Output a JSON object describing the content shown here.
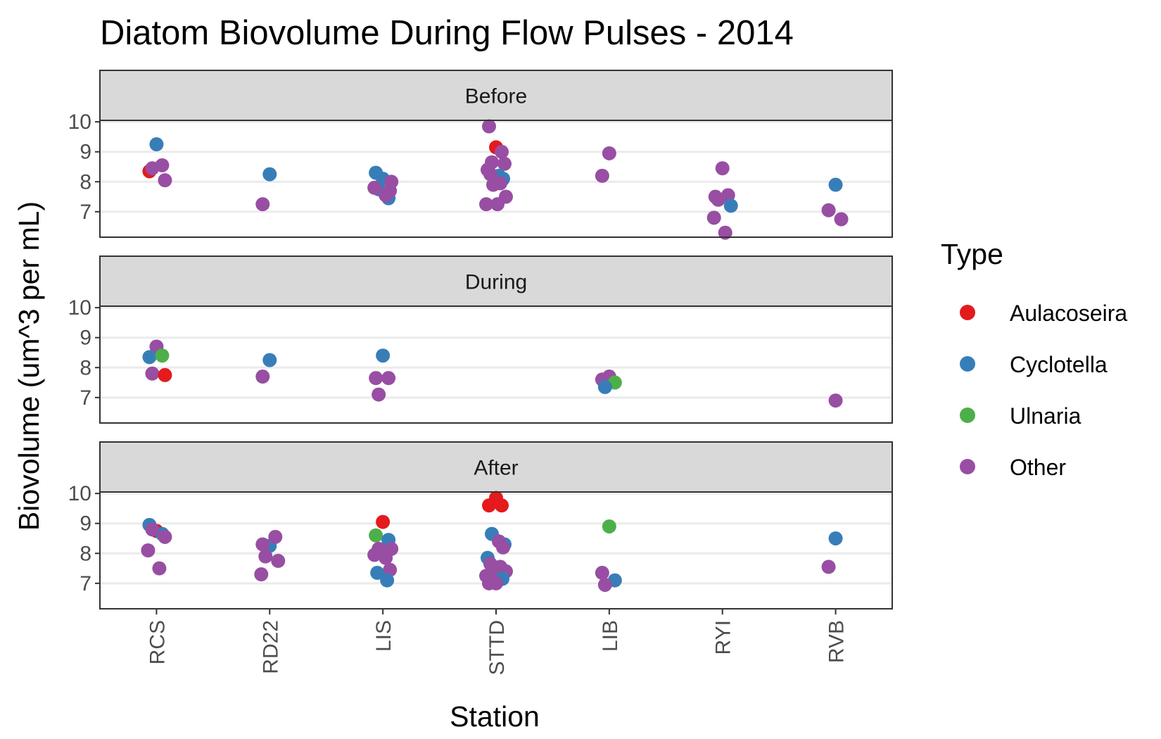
{
  "chart_data": {
    "type": "scatter",
    "title": "Diatom Biovolume During Flow Pulses - 2014",
    "xlabel": "Station",
    "ylabel": "Biovolume (um^3 per mL)",
    "categories": [
      "RCS",
      "RD22",
      "LIS",
      "STTD",
      "LIB",
      "RYI",
      "RVB"
    ],
    "ylim": [
      6.15,
      10.05
    ],
    "yticks": [
      7,
      8,
      9,
      10
    ],
    "grid": true,
    "legend_position": "right",
    "legend": {
      "title": "Type",
      "entries": [
        {
          "name": "Aulacoseira",
          "color": "#e41a1c"
        },
        {
          "name": "Cyclotella",
          "color": "#377eb8"
        },
        {
          "name": "Ulnaria",
          "color": "#4daf4a"
        },
        {
          "name": "Other",
          "color": "#984ea3"
        }
      ]
    },
    "panels": [
      {
        "label": "Before",
        "points": [
          {
            "station": "RCS",
            "type": "Cyclotella",
            "y": 9.25
          },
          {
            "station": "RCS",
            "type": "Aulacoseira",
            "y": 8.35
          },
          {
            "station": "RCS",
            "type": "Other",
            "y": 8.55
          },
          {
            "station": "RCS",
            "type": "Other",
            "y": 8.45
          },
          {
            "station": "RCS",
            "type": "Other",
            "y": 8.05
          },
          {
            "station": "RD22",
            "type": "Cyclotella",
            "y": 8.25
          },
          {
            "station": "RD22",
            "type": "Other",
            "y": 7.25
          },
          {
            "station": "LIS",
            "type": "Cyclotella",
            "y": 8.1
          },
          {
            "station": "LIS",
            "type": "Cyclotella",
            "y": 8.3
          },
          {
            "station": "LIS",
            "type": "Cyclotella",
            "y": 7.45
          },
          {
            "station": "LIS",
            "type": "Cyclotella",
            "y": 7.75
          },
          {
            "station": "LIS",
            "type": "Other",
            "y": 8.0
          },
          {
            "station": "LIS",
            "type": "Other",
            "y": 7.8
          },
          {
            "station": "LIS",
            "type": "Other",
            "y": 7.55
          },
          {
            "station": "LIS",
            "type": "Other",
            "y": 7.7
          },
          {
            "station": "STTD",
            "type": "Aulacoseira",
            "y": 9.15
          },
          {
            "station": "STTD",
            "type": "Other",
            "y": 9.85
          },
          {
            "station": "STTD",
            "type": "Other",
            "y": 9.0
          },
          {
            "station": "STTD",
            "type": "Other",
            "y": 8.65
          },
          {
            "station": "STTD",
            "type": "Other",
            "y": 8.6
          },
          {
            "station": "STTD",
            "type": "Other",
            "y": 8.4
          },
          {
            "station": "STTD",
            "type": "Cyclotella",
            "y": 8.2
          },
          {
            "station": "STTD",
            "type": "Cyclotella",
            "y": 8.1
          },
          {
            "station": "STTD",
            "type": "Other",
            "y": 8.25
          },
          {
            "station": "STTD",
            "type": "Other",
            "y": 7.95
          },
          {
            "station": "STTD",
            "type": "Other",
            "y": 7.9
          },
          {
            "station": "STTD",
            "type": "Other",
            "y": 7.5
          },
          {
            "station": "STTD",
            "type": "Other",
            "y": 7.25
          },
          {
            "station": "STTD",
            "type": "Other",
            "y": 7.25
          },
          {
            "station": "LIB",
            "type": "Other",
            "y": 8.95
          },
          {
            "station": "LIB",
            "type": "Other",
            "y": 8.2
          },
          {
            "station": "RYI",
            "type": "Other",
            "y": 8.45
          },
          {
            "station": "RYI",
            "type": "Other",
            "y": 7.5
          },
          {
            "station": "RYI",
            "type": "Other",
            "y": 7.55
          },
          {
            "station": "RYI",
            "type": "Other",
            "y": 7.4
          },
          {
            "station": "RYI",
            "type": "Cyclotella",
            "y": 7.2
          },
          {
            "station": "RYI",
            "type": "Other",
            "y": 6.8
          },
          {
            "station": "RYI",
            "type": "Other",
            "y": 6.3
          },
          {
            "station": "RVB",
            "type": "Cyclotella",
            "y": 7.9
          },
          {
            "station": "RVB",
            "type": "Other",
            "y": 7.05
          },
          {
            "station": "RVB",
            "type": "Other",
            "y": 6.75
          }
        ]
      },
      {
        "label": "During",
        "points": [
          {
            "station": "RCS",
            "type": "Other",
            "y": 8.7
          },
          {
            "station": "RCS",
            "type": "Cyclotella",
            "y": 8.35
          },
          {
            "station": "RCS",
            "type": "Ulnaria",
            "y": 8.4
          },
          {
            "station": "RCS",
            "type": "Other",
            "y": 7.8
          },
          {
            "station": "RCS",
            "type": "Aulacoseira",
            "y": 7.75
          },
          {
            "station": "RD22",
            "type": "Cyclotella",
            "y": 8.25
          },
          {
            "station": "RD22",
            "type": "Other",
            "y": 7.7
          },
          {
            "station": "LIS",
            "type": "Cyclotella",
            "y": 8.4
          },
          {
            "station": "LIS",
            "type": "Other",
            "y": 7.65
          },
          {
            "station": "LIS",
            "type": "Other",
            "y": 7.65
          },
          {
            "station": "LIS",
            "type": "Other",
            "y": 7.1
          },
          {
            "station": "LIB",
            "type": "Other",
            "y": 7.7
          },
          {
            "station": "LIB",
            "type": "Other",
            "y": 7.6
          },
          {
            "station": "LIB",
            "type": "Ulnaria",
            "y": 7.5
          },
          {
            "station": "LIB",
            "type": "Cyclotella",
            "y": 7.35
          },
          {
            "station": "RVB",
            "type": "Other",
            "y": 6.9
          }
        ]
      },
      {
        "label": "After",
        "points": [
          {
            "station": "RCS",
            "type": "Aulacoseira",
            "y": 8.75
          },
          {
            "station": "RCS",
            "type": "Cyclotella",
            "y": 8.95
          },
          {
            "station": "RCS",
            "type": "Cyclotella",
            "y": 8.65
          },
          {
            "station": "RCS",
            "type": "Other",
            "y": 8.8
          },
          {
            "station": "RCS",
            "type": "Other",
            "y": 8.55
          },
          {
            "station": "RCS",
            "type": "Other",
            "y": 8.1
          },
          {
            "station": "RCS",
            "type": "Other",
            "y": 7.5
          },
          {
            "station": "RD22",
            "type": "Cyclotella",
            "y": 8.25
          },
          {
            "station": "RD22",
            "type": "Other",
            "y": 8.3
          },
          {
            "station": "RD22",
            "type": "Other",
            "y": 8.55
          },
          {
            "station": "RD22",
            "type": "Other",
            "y": 7.9
          },
          {
            "station": "RD22",
            "type": "Other",
            "y": 7.75
          },
          {
            "station": "RD22",
            "type": "Other",
            "y": 7.3
          },
          {
            "station": "LIS",
            "type": "Aulacoseira",
            "y": 9.05
          },
          {
            "station": "LIS",
            "type": "Ulnaria",
            "y": 8.6
          },
          {
            "station": "LIS",
            "type": "Cyclotella",
            "y": 8.45
          },
          {
            "station": "LIS",
            "type": "Other",
            "y": 8.15
          },
          {
            "station": "LIS",
            "type": "Other",
            "y": 8.15
          },
          {
            "station": "LIS",
            "type": "Other",
            "y": 7.95
          },
          {
            "station": "LIS",
            "type": "Other",
            "y": 7.85
          },
          {
            "station": "LIS",
            "type": "Other",
            "y": 7.45
          },
          {
            "station": "LIS",
            "type": "Cyclotella",
            "y": 7.35
          },
          {
            "station": "LIS",
            "type": "Cyclotella",
            "y": 7.1
          },
          {
            "station": "STTD",
            "type": "Aulacoseira",
            "y": 9.85
          },
          {
            "station": "STTD",
            "type": "Aulacoseira",
            "y": 9.6
          },
          {
            "station": "STTD",
            "type": "Aulacoseira",
            "y": 9.6
          },
          {
            "station": "STTD",
            "type": "Cyclotella",
            "y": 8.65
          },
          {
            "station": "STTD",
            "type": "Cyclotella",
            "y": 8.3
          },
          {
            "station": "STTD",
            "type": "Cyclotella",
            "y": 7.85
          },
          {
            "station": "STTD",
            "type": "Other",
            "y": 8.4
          },
          {
            "station": "STTD",
            "type": "Other",
            "y": 8.2
          },
          {
            "station": "STTD",
            "type": "Other",
            "y": 7.65
          },
          {
            "station": "STTD",
            "type": "Other",
            "y": 7.55
          },
          {
            "station": "STTD",
            "type": "Other",
            "y": 7.55
          },
          {
            "station": "STTD",
            "type": "Other",
            "y": 7.4
          },
          {
            "station": "STTD",
            "type": "Other",
            "y": 7.25
          },
          {
            "station": "STTD",
            "type": "Other",
            "y": 7.15
          },
          {
            "station": "STTD",
            "type": "Cyclotella",
            "y": 7.15
          },
          {
            "station": "STTD",
            "type": "Other",
            "y": 7.05
          },
          {
            "station": "STTD",
            "type": "Other",
            "y": 7.0
          },
          {
            "station": "STTD",
            "type": "Other",
            "y": 7.0
          },
          {
            "station": "LIB",
            "type": "Ulnaria",
            "y": 8.9
          },
          {
            "station": "LIB",
            "type": "Other",
            "y": 7.35
          },
          {
            "station": "LIB",
            "type": "Cyclotella",
            "y": 7.1
          },
          {
            "station": "LIB",
            "type": "Other",
            "y": 6.95
          },
          {
            "station": "RVB",
            "type": "Cyclotella",
            "y": 8.5
          },
          {
            "station": "RVB",
            "type": "Other",
            "y": 7.55
          }
        ]
      }
    ]
  }
}
